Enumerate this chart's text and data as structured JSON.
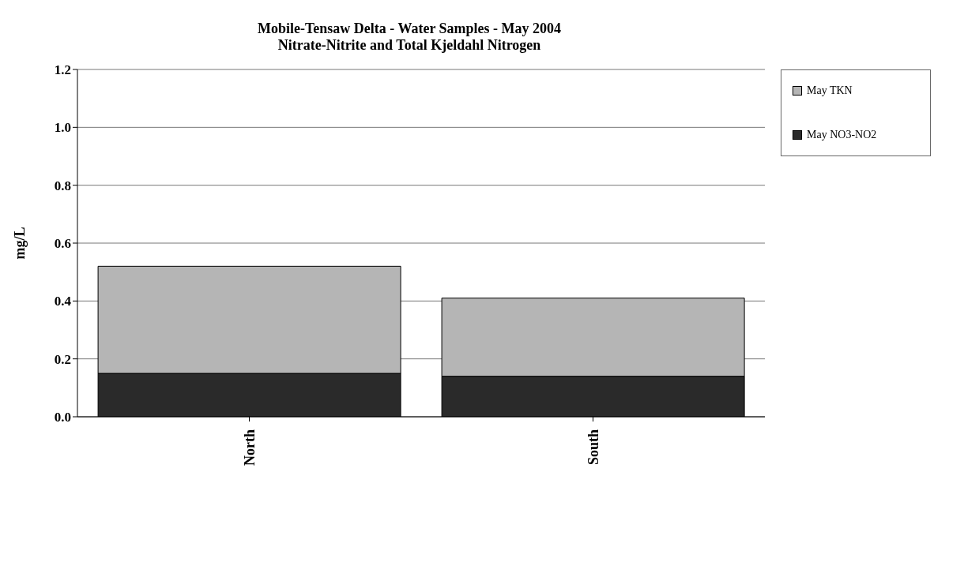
{
  "chart_data": {
    "type": "bar",
    "title": "Mobile-Tensaw Delta - Water Samples - May 2004",
    "subtitle": "Nitrate-Nitrite and Total Kjeldahl Nitrogen",
    "ylabel": "mg/L",
    "categories": [
      "North",
      "South"
    ],
    "stacked": true,
    "series": [
      {
        "name": "May NO3-NO2",
        "color": "#2a2a2a",
        "values": [
          0.15,
          0.14
        ]
      },
      {
        "name": "May TKN",
        "color": "#b5b5b5",
        "values": [
          0.37,
          0.27
        ]
      }
    ],
    "ylim": [
      0,
      1.2
    ],
    "yticks": [
      {
        "value": 0,
        "label": "0.0"
      },
      {
        "value": 0.2,
        "label": "0.2"
      },
      {
        "value": 0.4,
        "label": "0.4"
      },
      {
        "value": 0.6,
        "label": "0.6"
      },
      {
        "value": 0.8,
        "label": "0.8"
      },
      {
        "value": 1,
        "label": "1.0"
      },
      {
        "value": 1.2,
        "label": "1.2"
      }
    ],
    "grid": "y",
    "legend": "right"
  }
}
